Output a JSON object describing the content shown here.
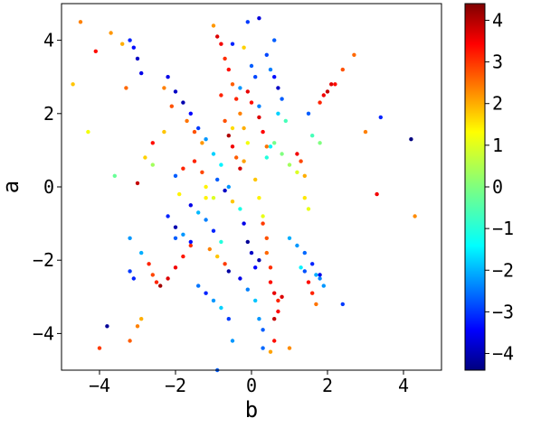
{
  "chart_data": {
    "type": "scatter",
    "xlabel": "b",
    "ylabel": "a",
    "xlim": [
      -5,
      5
    ],
    "ylim": [
      -5,
      5
    ],
    "xticks": [
      -4,
      -2,
      0,
      2,
      4
    ],
    "yticks": [
      -4,
      -2,
      0,
      2,
      4
    ],
    "xtick_labels": [
      "−4",
      "−2",
      "0",
      "2",
      "4"
    ],
    "ytick_labels": [
      "−4",
      "−2",
      "0",
      "2",
      "4"
    ],
    "grid": false,
    "colorbar": {
      "colormap": "jet",
      "range": [
        -4.4,
        4.4
      ],
      "ticks": [
        -4,
        -3,
        -2,
        -1,
        0,
        1,
        2,
        3,
        4
      ],
      "tick_labels": [
        "−4",
        "−3",
        "−2",
        "−1",
        "0",
        "1",
        "2",
        "3",
        "4"
      ]
    },
    "points": [
      [
        -4.5,
        4.5,
        2.2
      ],
      [
        -4.7,
        2.8,
        1.6
      ],
      [
        -4.3,
        1.5,
        1.0
      ],
      [
        -4.1,
        3.7,
        3.2
      ],
      [
        -4.0,
        -4.4,
        2.8
      ],
      [
        -3.8,
        -3.8,
        -4.2
      ],
      [
        -3.7,
        4.2,
        2.0
      ],
      [
        -3.6,
        0.3,
        -0.2
      ],
      [
        -3.4,
        3.9,
        1.8
      ],
      [
        -3.3,
        2.7,
        2.4
      ],
      [
        -3.2,
        4.0,
        -3.0
      ],
      [
        -3.1,
        3.8,
        -3.2
      ],
      [
        -3.0,
        3.5,
        -3.8
      ],
      [
        -2.9,
        3.1,
        -3.5
      ],
      [
        -3.2,
        -1.4,
        -2.0
      ],
      [
        -3.2,
        -2.3,
        -2.8
      ],
      [
        -3.1,
        -2.5,
        -3.0
      ],
      [
        -3.2,
        -4.2,
        2.5
      ],
      [
        -3.0,
        -3.8,
        2.2
      ],
      [
        -2.9,
        -3.6,
        1.8
      ],
      [
        -3.0,
        0.1,
        3.8
      ],
      [
        -2.8,
        0.8,
        1.5
      ],
      [
        -2.6,
        1.2,
        3.2
      ],
      [
        -2.3,
        2.7,
        2.2
      ],
      [
        -2.1,
        2.2,
        2.6
      ],
      [
        -2.2,
        3.0,
        -3.5
      ],
      [
        -2.0,
        2.6,
        -3.8
      ],
      [
        -1.8,
        2.3,
        -4.0
      ],
      [
        -1.6,
        2.0,
        -3.3
      ],
      [
        -1.4,
        1.6,
        -2.8
      ],
      [
        -1.2,
        1.3,
        -2.0
      ],
      [
        -1.0,
        0.9,
        -1.5
      ],
      [
        -0.8,
        0.6,
        -1.2
      ],
      [
        -2.9,
        -1.8,
        -1.8
      ],
      [
        -2.7,
        -2.1,
        3.0
      ],
      [
        -2.6,
        -2.4,
        2.7
      ],
      [
        -2.5,
        -2.6,
        3.0
      ],
      [
        -2.4,
        -2.7,
        4.1
      ],
      [
        -2.2,
        -2.5,
        3.6
      ],
      [
        -2.0,
        -2.2,
        3.4
      ],
      [
        -1.8,
        -1.9,
        3.1
      ],
      [
        -1.6,
        -1.6,
        2.9
      ],
      [
        -2.2,
        -0.8,
        -3.0
      ],
      [
        -2.0,
        -1.1,
        -4.0
      ],
      [
        -2.0,
        -1.4,
        -2.5
      ],
      [
        -1.8,
        -1.3,
        -2.0
      ],
      [
        -1.6,
        -1.5,
        -3.2
      ],
      [
        -2.0,
        0.3,
        -2.5
      ],
      [
        -1.9,
        -0.2,
        1.2
      ],
      [
        -1.8,
        0.5,
        3.0
      ],
      [
        -1.7,
        1.8,
        2.3
      ],
      [
        -1.5,
        1.5,
        2.6
      ],
      [
        -1.3,
        1.2,
        2.0
      ],
      [
        -1.5,
        0.7,
        3.0
      ],
      [
        -1.3,
        0.4,
        2.7
      ],
      [
        -1.2,
        0.0,
        1.2
      ],
      [
        -1.0,
        -0.3,
        0.8
      ],
      [
        -1.6,
        -0.5,
        -3.5
      ],
      [
        -1.4,
        -0.7,
        -1.7
      ],
      [
        -1.2,
        -0.9,
        -2.2
      ],
      [
        -1.0,
        -1.2,
        -3.0
      ],
      [
        -0.8,
        -1.5,
        -0.8
      ],
      [
        -1.1,
        -1.7,
        2.2
      ],
      [
        -0.9,
        -1.9,
        1.6
      ],
      [
        -0.7,
        -2.1,
        2.8
      ],
      [
        -0.6,
        -2.3,
        -4.1
      ],
      [
        -1.4,
        -2.7,
        -2.3
      ],
      [
        -1.2,
        -2.9,
        -3.0
      ],
      [
        -1.0,
        -3.1,
        -2.0
      ],
      [
        -0.8,
        -3.3,
        -1.5
      ],
      [
        -0.6,
        -3.6,
        -2.8
      ],
      [
        -0.9,
        -5.0,
        -2.5
      ],
      [
        -0.5,
        -4.2,
        -2.0
      ],
      [
        -1.0,
        4.4,
        2.0
      ],
      [
        -0.9,
        4.1,
        3.6
      ],
      [
        -0.8,
        3.9,
        3.4
      ],
      [
        -0.7,
        3.5,
        2.9
      ],
      [
        -0.6,
        3.2,
        3.2
      ],
      [
        -0.5,
        2.8,
        2.5
      ],
      [
        -0.4,
        2.4,
        3.0
      ],
      [
        -0.3,
        2.0,
        2.2
      ],
      [
        -0.2,
        1.6,
        1.8
      ],
      [
        -0.8,
        2.5,
        3.0
      ],
      [
        -0.7,
        1.8,
        2.6
      ],
      [
        -0.6,
        1.4,
        4.0
      ],
      [
        -0.5,
        1.1,
        3.4
      ],
      [
        -0.5,
        1.6,
        1.4
      ],
      [
        -0.4,
        0.8,
        2.5
      ],
      [
        -0.3,
        0.5,
        3.7
      ],
      [
        -0.2,
        0.7,
        1.9
      ],
      [
        -0.1,
        1.2,
        1.0
      ],
      [
        -0.9,
        0.2,
        -2.5
      ],
      [
        -0.7,
        -0.1,
        -3.8
      ],
      [
        -0.6,
        0.0,
        -2.0
      ],
      [
        -0.5,
        -0.4,
        1.6
      ],
      [
        -0.3,
        -0.6,
        -0.9
      ],
      [
        -0.1,
        4.5,
        -2.8
      ],
      [
        -0.5,
        3.9,
        -3.0
      ],
      [
        -0.2,
        3.8,
        1.5
      ],
      [
        0.0,
        3.3,
        -2.5
      ],
      [
        0.1,
        3.0,
        -2.7
      ],
      [
        0.2,
        2.2,
        -2.2
      ],
      [
        -0.1,
        2.6,
        3.5
      ],
      [
        0.0,
        2.3,
        3.2
      ],
      [
        0.2,
        1.9,
        3.6
      ],
      [
        0.3,
        1.5,
        3.3
      ],
      [
        0.4,
        1.1,
        2.3
      ],
      [
        -0.2,
        -1.0,
        -3.5
      ],
      [
        -0.1,
        -1.5,
        -4.2
      ],
      [
        0.0,
        -1.8,
        -3.8
      ],
      [
        0.1,
        -2.2,
        -3.3
      ],
      [
        0.2,
        -2.0,
        -4.0
      ],
      [
        -0.3,
        -2.5,
        -3.5
      ],
      [
        -0.1,
        -2.8,
        -2.2
      ],
      [
        0.1,
        -3.1,
        -1.6
      ],
      [
        0.2,
        -3.6,
        -2.0
      ],
      [
        0.3,
        -3.9,
        -2.5
      ],
      [
        0.1,
        0.2,
        1.6
      ],
      [
        0.2,
        -0.3,
        1.2
      ],
      [
        0.3,
        -0.8,
        0.9
      ],
      [
        0.4,
        0.8,
        -0.8
      ],
      [
        0.5,
        1.1,
        -1.2
      ],
      [
        0.2,
        4.6,
        -3.6
      ],
      [
        0.4,
        3.6,
        -2.7
      ],
      [
        0.5,
        3.2,
        -2.2
      ],
      [
        0.6,
        3.0,
        -3.2
      ],
      [
        0.7,
        2.7,
        -3.8
      ],
      [
        0.8,
        2.4,
        -2.5
      ],
      [
        0.7,
        2.0,
        -1.5
      ],
      [
        0.9,
        1.8,
        -0.5
      ],
      [
        0.6,
        4.0,
        -2.5
      ],
      [
        0.3,
        -1.0,
        2.8
      ],
      [
        0.4,
        -1.4,
        2.6
      ],
      [
        0.4,
        -1.8,
        2.4
      ],
      [
        0.5,
        -2.2,
        2.9
      ],
      [
        0.5,
        -2.6,
        3.2
      ],
      [
        0.6,
        -2.9,
        3.5
      ],
      [
        0.7,
        -3.1,
        3.0
      ],
      [
        0.7,
        -3.4,
        3.3
      ],
      [
        0.6,
        -3.6,
        3.8
      ],
      [
        0.8,
        -3.0,
        3.6
      ],
      [
        0.3,
        -4.4,
        -2.4
      ],
      [
        0.5,
        -4.5,
        1.9
      ],
      [
        0.6,
        -4.2,
        3.2
      ],
      [
        1.0,
        -4.4,
        2.1
      ],
      [
        0.6,
        1.2,
        -0.1
      ],
      [
        0.8,
        0.9,
        0.0
      ],
      [
        1.0,
        0.6,
        0.3
      ],
      [
        1.2,
        0.4,
        0.8
      ],
      [
        1.4,
        0.3,
        1.8
      ],
      [
        1.0,
        -1.4,
        -1.8
      ],
      [
        1.2,
        -1.6,
        -2.0
      ],
      [
        1.4,
        -1.8,
        -2.4
      ],
      [
        1.6,
        -2.1,
        -3.0
      ],
      [
        1.8,
        -2.4,
        -3.5
      ],
      [
        1.5,
        2.0,
        -2.5
      ],
      [
        1.6,
        1.4,
        -0.5
      ],
      [
        1.8,
        2.3,
        3.0
      ],
      [
        1.9,
        2.5,
        3.4
      ],
      [
        2.0,
        2.6,
        3.8
      ],
      [
        2.1,
        2.8,
        3.6
      ],
      [
        2.2,
        2.8,
        3.2
      ],
      [
        2.4,
        3.2,
        2.6
      ],
      [
        2.7,
        3.6,
        2.4
      ],
      [
        1.2,
        0.9,
        3.4
      ],
      [
        1.3,
        0.7,
        2.7
      ],
      [
        1.4,
        -0.3,
        1.3
      ],
      [
        1.5,
        -0.6,
        0.9
      ],
      [
        1.8,
        1.2,
        0.0
      ],
      [
        1.3,
        -2.2,
        -1.2
      ],
      [
        1.4,
        -2.3,
        -2.6
      ],
      [
        1.7,
        -2.4,
        -1.8
      ],
      [
        1.8,
        -2.5,
        -2.2
      ],
      [
        1.9,
        -2.7,
        -2.0
      ],
      [
        1.5,
        -2.6,
        3.2
      ],
      [
        1.6,
        -2.9,
        3.0
      ],
      [
        1.7,
        -3.2,
        2.3
      ],
      [
        2.4,
        -3.2,
        -2.8
      ],
      [
        3.0,
        1.5,
        2.2
      ],
      [
        3.3,
        -0.2,
        3.4
      ],
      [
        3.4,
        1.9,
        -3.0
      ],
      [
        4.2,
        1.3,
        -4.4
      ],
      [
        4.3,
        -0.8,
        2.1
      ],
      [
        -0.3,
        2.7,
        -2.0
      ],
      [
        -1.2,
        -0.3,
        1.2
      ],
      [
        -2.3,
        1.5,
        1.6
      ],
      [
        -2.6,
        0.6,
        0.3
      ]
    ]
  }
}
